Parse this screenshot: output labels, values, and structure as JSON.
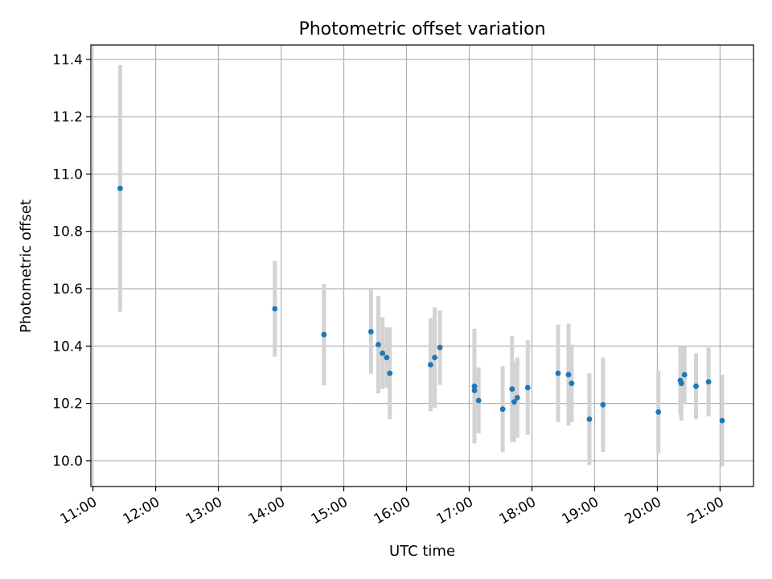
{
  "chart_data": {
    "type": "scatter",
    "title": "Photometric offset variation",
    "xlabel": "UTC time",
    "ylabel": "Photometric offset",
    "xlim": [
      "10:58",
      "21:32"
    ],
    "ylim": [
      9.91,
      11.45
    ],
    "x_ticks": [
      "11:00",
      "12:00",
      "13:00",
      "14:00",
      "15:00",
      "16:00",
      "17:00",
      "18:00",
      "19:00",
      "20:00",
      "21:00"
    ],
    "y_ticks": [
      10.0,
      10.2,
      10.4,
      10.6,
      10.8,
      11.0,
      11.2,
      11.4
    ],
    "grid": true,
    "legend": "none",
    "colors": {
      "point": "#1f77b4",
      "error_bar": "#d3d3d3"
    },
    "points": [
      {
        "x": "11:26",
        "y": 10.95,
        "err": 0.43
      },
      {
        "x": "13:54",
        "y": 10.53,
        "err": 0.167
      },
      {
        "x": "14:41",
        "y": 10.44,
        "err": 0.177
      },
      {
        "x": "15:26",
        "y": 10.45,
        "err": 0.147
      },
      {
        "x": "15:33",
        "y": 10.405,
        "err": 0.17
      },
      {
        "x": "15:37",
        "y": 10.375,
        "err": 0.125
      },
      {
        "x": "15:41",
        "y": 10.36,
        "err": 0.105
      },
      {
        "x": "15:44",
        "y": 10.305,
        "err": 0.16
      },
      {
        "x": "16:23",
        "y": 10.335,
        "err": 0.162
      },
      {
        "x": "16:27",
        "y": 10.36,
        "err": 0.175
      },
      {
        "x": "16:32",
        "y": 10.395,
        "err": 0.13
      },
      {
        "x": "17:05",
        "y": 10.26,
        "err": 0.2
      },
      {
        "x": "17:05",
        "y": 10.245,
        "err": 0.14
      },
      {
        "x": "17:09",
        "y": 10.21,
        "err": 0.115
      },
      {
        "x": "17:32",
        "y": 10.18,
        "err": 0.15
      },
      {
        "x": "17:41",
        "y": 10.25,
        "err": 0.185
      },
      {
        "x": "17:43",
        "y": 10.205,
        "err": 0.14
      },
      {
        "x": "17:46",
        "y": 10.22,
        "err": 0.14
      },
      {
        "x": "17:56",
        "y": 10.255,
        "err": 0.165
      },
      {
        "x": "18:25",
        "y": 10.305,
        "err": 0.17
      },
      {
        "x": "18:35",
        "y": 10.3,
        "err": 0.178
      },
      {
        "x": "18:38",
        "y": 10.27,
        "err": 0.135
      },
      {
        "x": "18:55",
        "y": 10.145,
        "err": 0.16
      },
      {
        "x": "19:08",
        "y": 10.195,
        "err": 0.165
      },
      {
        "x": "20:01",
        "y": 10.17,
        "err": 0.145
      },
      {
        "x": "20:22",
        "y": 10.28,
        "err": 0.12
      },
      {
        "x": "20:23",
        "y": 10.27,
        "err": 0.13
      },
      {
        "x": "20:26",
        "y": 10.3,
        "err": 0.1
      },
      {
        "x": "20:37",
        "y": 10.26,
        "err": 0.115
      },
      {
        "x": "20:49",
        "y": 10.275,
        "err": 0.12
      },
      {
        "x": "21:02",
        "y": 10.14,
        "err": 0.16
      }
    ]
  }
}
